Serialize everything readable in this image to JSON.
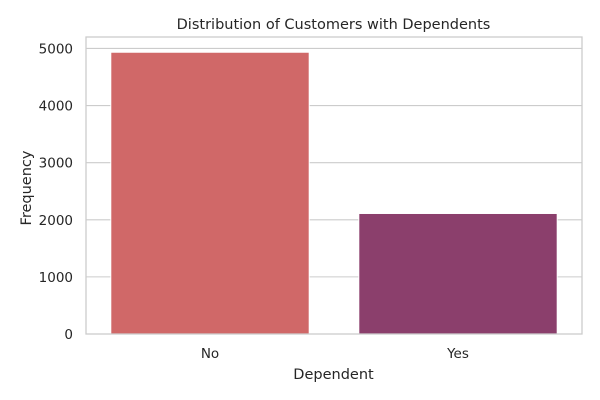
{
  "chart_data": {
    "type": "bar",
    "title": "Distribution of Customers with Dependents",
    "xlabel": "Dependent",
    "ylabel": "Frequency",
    "categories": [
      "No",
      "Yes"
    ],
    "values": [
      4933,
      2110
    ],
    "colors": [
      "#d06868",
      "#8b3f6c"
    ],
    "ylim": [
      0,
      5200
    ],
    "yticks": [
      0,
      1000,
      2000,
      3000,
      4000,
      5000
    ],
    "grid": "horizontal",
    "legend": "none"
  }
}
